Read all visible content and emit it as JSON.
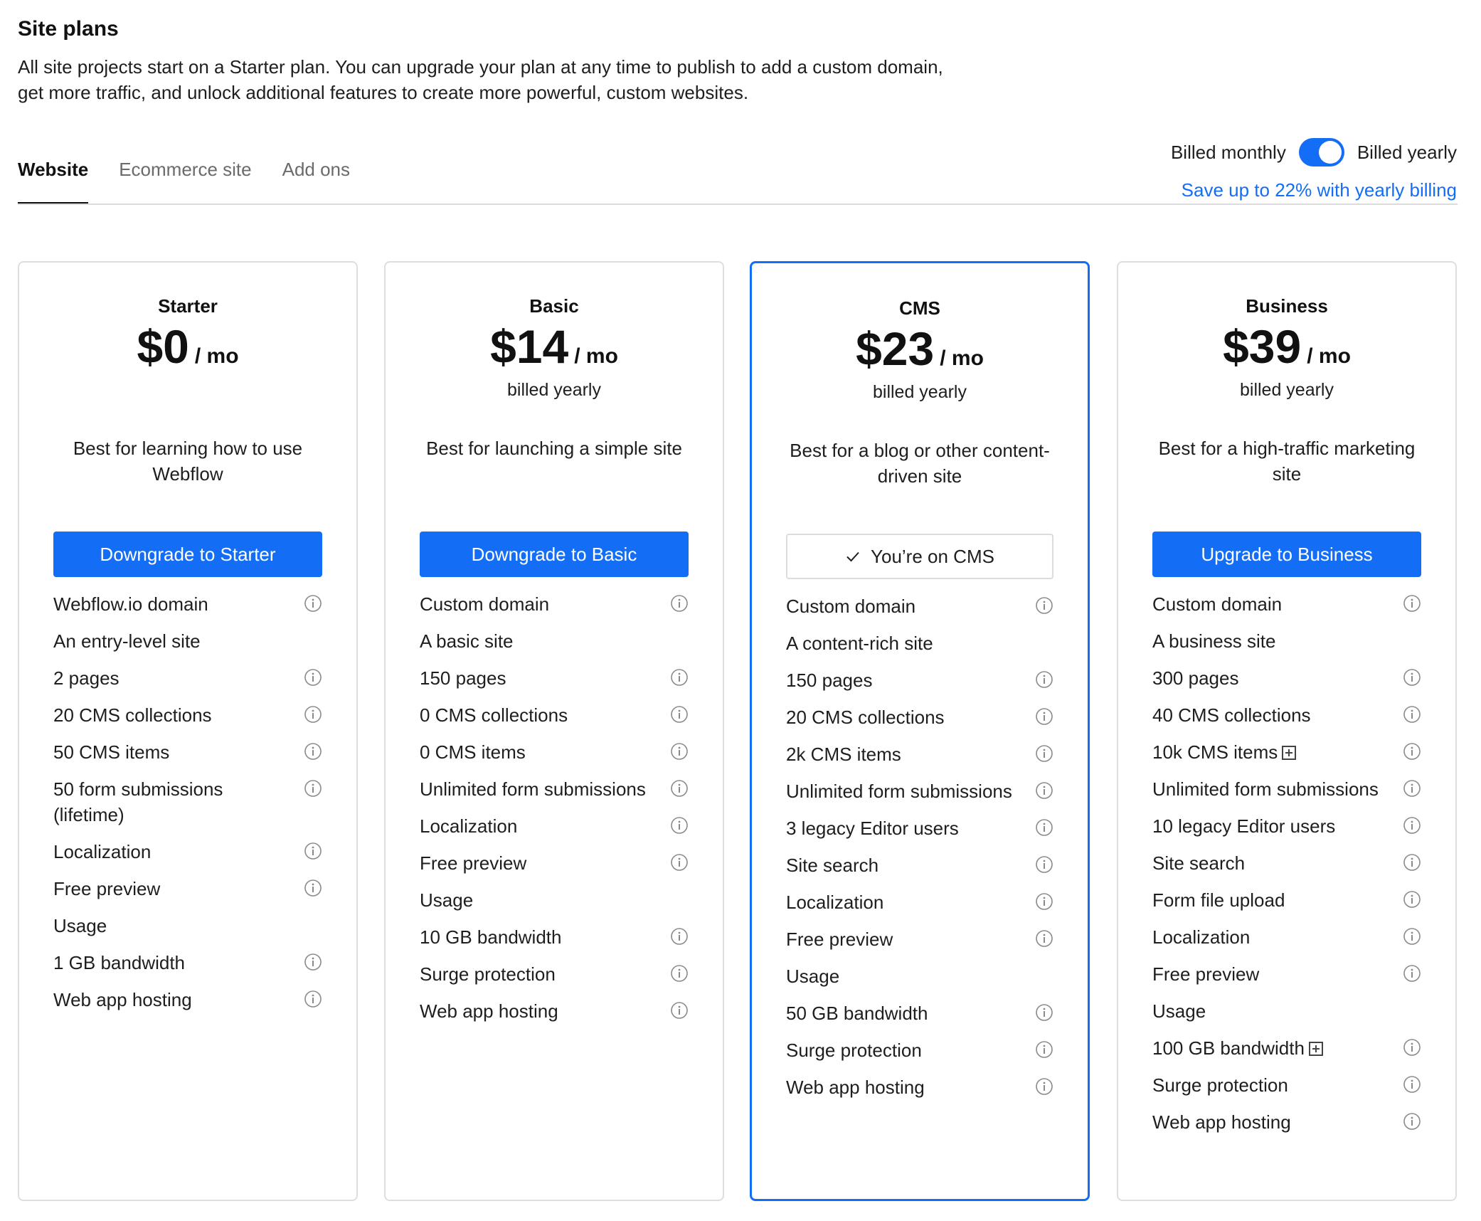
{
  "header": {
    "title": "Site plans",
    "description": "All site projects start on a Starter plan. You can upgrade your plan at any time to publish to add a custom domain, get more traffic, and unlock additional features to create more powerful, custom websites."
  },
  "tabs": [
    {
      "label": "Website",
      "active": true
    },
    {
      "label": "Ecommerce site",
      "active": false
    },
    {
      "label": "Add ons",
      "active": false
    }
  ],
  "billing": {
    "monthly_label": "Billed monthly",
    "yearly_label": "Billed yearly",
    "toggle_on": true,
    "save_link": "Save up to 22% with yearly billing"
  },
  "colors": {
    "accent": "#146ef5",
    "border": "#dedede"
  },
  "plans": [
    {
      "name": "Starter",
      "price": "$0",
      "unit": "/ mo",
      "billed": "",
      "tagline": "Best for learning how to use Webflow",
      "cta": "Downgrade to Starter",
      "current": false,
      "features": [
        {
          "text": "Webflow.io domain",
          "info": true,
          "plus": false
        },
        {
          "text": "An entry-level site",
          "info": false,
          "plus": false
        },
        {
          "text": "2 pages",
          "info": true,
          "plus": false
        },
        {
          "text": "20 CMS collections",
          "info": true,
          "plus": false
        },
        {
          "text": "50 CMS items",
          "info": true,
          "plus": false
        },
        {
          "text": "50 form submissions (lifetime)",
          "info": true,
          "plus": false
        },
        {
          "text": "Localization",
          "info": true,
          "plus": false
        },
        {
          "text": "Free preview",
          "info": true,
          "plus": false
        },
        {
          "text": "Usage",
          "info": false,
          "plus": false
        },
        {
          "text": "1 GB bandwidth",
          "info": true,
          "plus": false
        },
        {
          "text": "Web app hosting",
          "info": true,
          "plus": false
        }
      ]
    },
    {
      "name": "Basic",
      "price": "$14",
      "unit": "/ mo",
      "billed": "billed yearly",
      "tagline": "Best for launching a simple site",
      "cta": "Downgrade to Basic",
      "current": false,
      "features": [
        {
          "text": "Custom domain",
          "info": true,
          "plus": false
        },
        {
          "text": "A basic site",
          "info": false,
          "plus": false
        },
        {
          "text": "150 pages",
          "info": true,
          "plus": false
        },
        {
          "text": "0 CMS collections",
          "info": true,
          "plus": false
        },
        {
          "text": "0 CMS items",
          "info": true,
          "plus": false
        },
        {
          "text": "Unlimited form submissions",
          "info": true,
          "plus": false
        },
        {
          "text": "Localization",
          "info": true,
          "plus": false
        },
        {
          "text": "Free preview",
          "info": true,
          "plus": false
        },
        {
          "text": "Usage",
          "info": false,
          "plus": false
        },
        {
          "text": "10 GB bandwidth",
          "info": true,
          "plus": false
        },
        {
          "text": "Surge protection",
          "info": true,
          "plus": false
        },
        {
          "text": "Web app hosting",
          "info": true,
          "plus": false
        }
      ]
    },
    {
      "name": "CMS",
      "price": "$23",
      "unit": "/ mo",
      "billed": "billed yearly",
      "tagline": "Best for a blog or other content-driven site",
      "cta": "You’re on CMS",
      "current": true,
      "features": [
        {
          "text": "Custom domain",
          "info": true,
          "plus": false
        },
        {
          "text": "A content-rich site",
          "info": false,
          "plus": false
        },
        {
          "text": "150 pages",
          "info": true,
          "plus": false
        },
        {
          "text": "20 CMS collections",
          "info": true,
          "plus": false
        },
        {
          "text": "2k CMS items",
          "info": true,
          "plus": false
        },
        {
          "text": "Unlimited form submissions",
          "info": true,
          "plus": false
        },
        {
          "text": "3 legacy Editor users",
          "info": true,
          "plus": false
        },
        {
          "text": "Site search",
          "info": true,
          "plus": false
        },
        {
          "text": "Localization",
          "info": true,
          "plus": false
        },
        {
          "text": "Free preview",
          "info": true,
          "plus": false
        },
        {
          "text": "Usage",
          "info": false,
          "plus": false
        },
        {
          "text": "50 GB bandwidth",
          "info": true,
          "plus": false
        },
        {
          "text": "Surge protection",
          "info": true,
          "plus": false
        },
        {
          "text": "Web app hosting",
          "info": true,
          "plus": false
        }
      ]
    },
    {
      "name": "Business",
      "price": "$39",
      "unit": "/ mo",
      "billed": "billed yearly",
      "tagline": "Best for a high-traffic marketing site",
      "cta": "Upgrade to Business",
      "current": false,
      "features": [
        {
          "text": "Custom domain",
          "info": true,
          "plus": false
        },
        {
          "text": "A business site",
          "info": false,
          "plus": false
        },
        {
          "text": "300 pages",
          "info": true,
          "plus": false
        },
        {
          "text": "40 CMS collections",
          "info": true,
          "plus": false
        },
        {
          "text": "10k CMS items",
          "info": true,
          "plus": true
        },
        {
          "text": "Unlimited form submissions",
          "info": true,
          "plus": false
        },
        {
          "text": "10 legacy Editor users",
          "info": true,
          "plus": false
        },
        {
          "text": "Site search",
          "info": true,
          "plus": false
        },
        {
          "text": "Form file upload",
          "info": true,
          "plus": false
        },
        {
          "text": "Localization",
          "info": true,
          "plus": false
        },
        {
          "text": "Free preview",
          "info": true,
          "plus": false
        },
        {
          "text": "Usage",
          "info": false,
          "plus": false
        },
        {
          "text": "100 GB bandwidth",
          "info": true,
          "plus": true
        },
        {
          "text": "Surge protection",
          "info": true,
          "plus": false
        },
        {
          "text": "Web app hosting",
          "info": true,
          "plus": false
        }
      ]
    }
  ]
}
